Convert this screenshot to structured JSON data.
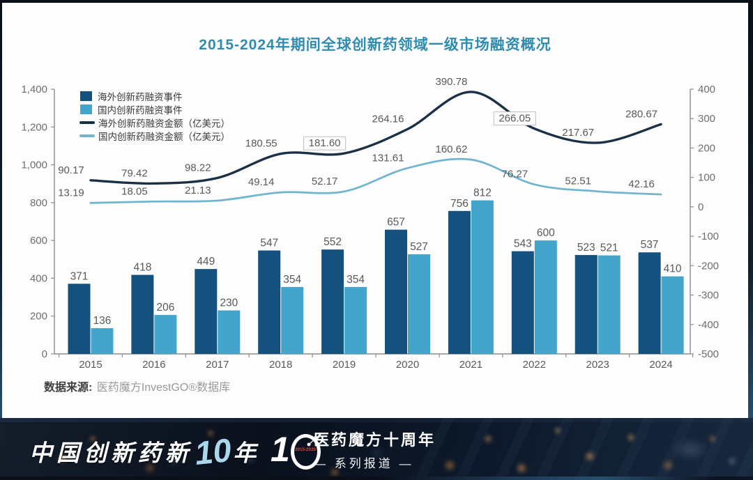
{
  "title": "2015-2024年期间全球创新药领域一级市场融资概况",
  "source": {
    "label": "数据来源:",
    "value": "医药魔方InvestGO®数据库"
  },
  "footer": {
    "slogan_prefix": "中国创新药新",
    "slogan_number": "10",
    "slogan_suffix": "年",
    "logo_number_left": "1",
    "logo_years": "2015-2025",
    "campaign_title": "医药魔方十周年",
    "campaign_subtitle": "— 系列报道 —"
  },
  "colors": {
    "title": "#2e8cb0",
    "bar_dark": "#14517e",
    "bar_light": "#44a5cc",
    "line_dark": "#1b2f45",
    "line_light": "#72b5cf",
    "label_gray": "#595959",
    "axis_gray": "#8c8c8c",
    "tick_text": "#6e6e6e",
    "footer_accent": "#a9d7ec",
    "logo_red": "#e04438"
  },
  "chart_data": {
    "type": "bar",
    "subtype": "bar-line-combo",
    "title": "2015-2024年期间全球创新药领域一级市场融资概况",
    "categories": [
      "2015",
      "2016",
      "2017",
      "2018",
      "2019",
      "2020",
      "2021",
      "2022",
      "2023",
      "2024"
    ],
    "series": [
      {
        "name": "海外创新药融资事件",
        "type": "bar",
        "axis": "left",
        "color": "#14517e",
        "values": [
          371,
          418,
          449,
          547,
          552,
          657,
          756,
          543,
          523,
          537
        ]
      },
      {
        "name": "国内创新药融资事件",
        "type": "bar",
        "axis": "left",
        "color": "#44a5cc",
        "values": [
          136,
          206,
          230,
          354,
          354,
          527,
          812,
          600,
          521,
          410
        ]
      },
      {
        "name": "海外创新药融资金额（亿美元）",
        "type": "line",
        "axis": "right",
        "color": "#1b2f45",
        "values": [
          90.17,
          79.42,
          98.22,
          180.55,
          181.6,
          264.16,
          390.78,
          266.05,
          217.67,
          280.67
        ],
        "boxed_labels": [
          4,
          7
        ]
      },
      {
        "name": "国内创新药融资金额（亿美元）",
        "type": "line",
        "axis": "right",
        "color": "#72b5cf",
        "values": [
          13.19,
          18.05,
          21.13,
          49.14,
          52.17,
          131.61,
          160.62,
          76.27,
          52.51,
          42.16
        ]
      }
    ],
    "left_axis": {
      "min": 0,
      "max": 1400,
      "step": 200
    },
    "right_axis": {
      "min": -500,
      "max": 400,
      "step": 100
    },
    "legend_position": "top-left",
    "grid": false,
    "xlabel": "",
    "ylabel": ""
  }
}
